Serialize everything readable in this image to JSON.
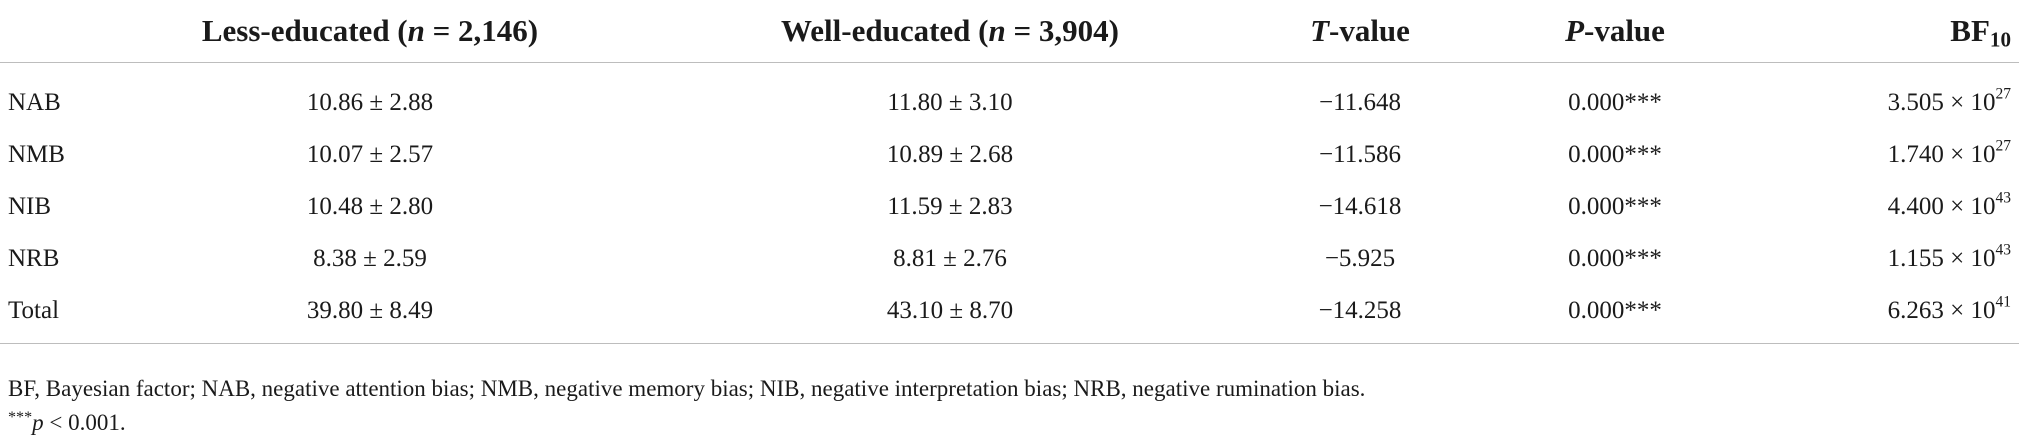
{
  "table": {
    "header": {
      "col1": {
        "pre": "Less-educated (",
        "var": "n",
        "rest": " = 2,146)"
      },
      "col2": {
        "pre": "Well-educated (",
        "var": "n",
        "rest": " = 3,904)"
      },
      "col3": {
        "var": "T",
        "rest": "-value"
      },
      "col4": {
        "var": "P",
        "rest": "-value"
      },
      "col5": {
        "base": "BF",
        "sub": "10"
      }
    },
    "rows": [
      {
        "label": "NAB",
        "less": "10.86 ± 2.88",
        "well": "11.80 ± 3.10",
        "t": "−11.648",
        "p": "0.000***",
        "bf_mant": "3.505 × 10",
        "bf_exp": "27"
      },
      {
        "label": "NMB",
        "less": "10.07 ± 2.57",
        "well": "10.89 ± 2.68",
        "t": "−11.586",
        "p": "0.000***",
        "bf_mant": "1.740 × 10",
        "bf_exp": "27"
      },
      {
        "label": "NIB",
        "less": "10.48 ± 2.80",
        "well": "11.59 ± 2.83",
        "t": "−14.618",
        "p": "0.000***",
        "bf_mant": "4.400 × 10",
        "bf_exp": "43"
      },
      {
        "label": "NRB",
        "less": "8.38 ± 2.59",
        "well": "8.81 ± 2.76",
        "t": "−5.925",
        "p": "0.000***",
        "bf_mant": "1.155 × 10",
        "bf_exp": "43"
      },
      {
        "label": "Total",
        "less": "39.80 ± 8.49",
        "well": "43.10 ± 8.70",
        "t": "−14.258",
        "p": "0.000***",
        "bf_mant": "6.263 × 10",
        "bf_exp": "41"
      }
    ]
  },
  "footnotes": {
    "abbreviations": "BF, Bayesian factor; NAB, negative attention bias; NMB, negative memory bias; NIB, negative interpretation bias; NRB, negative rumination bias.",
    "sig_stars": "***",
    "sig_var": "p",
    "sig_rest": " < 0.001."
  }
}
